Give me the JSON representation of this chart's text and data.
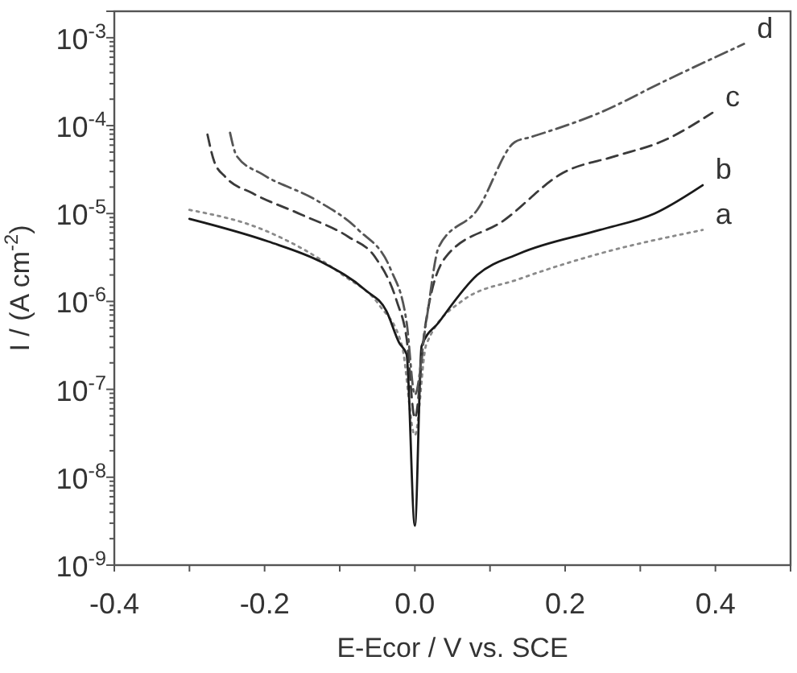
{
  "chart_data": {
    "type": "line",
    "xlabel": "E-Ecor / V vs. SCE",
    "ylabel": "I / (A cm$^{-2}$)",
    "log": "y",
    "xlim": [
      -0.4,
      0.5
    ],
    "ylim": [
      1e-09,
      0.002
    ],
    "xticks": [
      -0.4,
      {
        "value": -0.3,
        "label": null
      },
      -0.2,
      {
        "value": -0.1,
        "label": null
      },
      {
        "value": 0,
        "label": "0.0"
      },
      {
        "value": 0.1,
        "label": null
      },
      0.2,
      {
        "value": 0.3,
        "label": null
      },
      0.4
    ],
    "yticks": [
      {
        "value": 1e-09,
        "label": "10$^{-9}$"
      },
      {
        "value": 1e-08,
        "label": "10$^{-8}$"
      },
      {
        "value": 1e-07,
        "label": "10$^{-7}$"
      },
      {
        "value": 1e-06,
        "label": "10$^{-6}$"
      },
      {
        "value": 1e-05,
        "label": "10$^{-5}$"
      },
      {
        "value": 0.0001,
        "label": "10$^{-4}$"
      },
      {
        "value": 0.001,
        "label": "10$^{-3}$"
      }
    ],
    "grid": false,
    "marker": "none",
    "series": [
      {
        "name": "a",
        "color": "#8a8a8a",
        "line_style": "dotted",
        "x": [
          -0.3,
          -0.203,
          -0.096,
          -0.047,
          -0.017,
          0,
          0.015,
          0.062,
          0.139,
          0.246,
          0.383
        ],
        "values": [
          1.1e-05,
          6.6e-06,
          2e-06,
          9e-07,
          3.1e-07,
          3e-08,
          3.2e-07,
          1e-06,
          1.8e-06,
          3.5e-06,
          6.5e-06
        ]
      },
      {
        "name": "b",
        "color": "#1a1a1a",
        "line_style": "solid",
        "x": [
          -0.3,
          -0.195,
          -0.124,
          -0.066,
          -0.038,
          -0.021,
          -0.011,
          0,
          0.009,
          0.032,
          0.083,
          0.139,
          0.246,
          0.319,
          0.383
        ],
        "values": [
          8.7e-06,
          4.8e-06,
          2.8e-06,
          1.35e-06,
          7.8e-07,
          3.4e-07,
          2.5e-07,
          2.8e-09,
          3.1e-07,
          5.8e-07,
          2e-06,
          3.5e-06,
          6.5e-06,
          1e-05,
          2.1e-05
        ]
      },
      {
        "name": "c",
        "color": "#3a3a3a",
        "line_style": "dashed",
        "x": [
          -0.276,
          -0.267,
          -0.252,
          -0.216,
          -0.152,
          -0.088,
          -0.053,
          -0.024,
          -0.011,
          0,
          0.013,
          0.041,
          0.118,
          0.197,
          0.267,
          0.332,
          0.396
        ],
        "values": [
          7.9e-05,
          3.9e-05,
          2.6e-05,
          1.7e-05,
          9.8e-06,
          5.4e-06,
          3.2e-06,
          1e-06,
          3.8e-07,
          4.7e-08,
          4.7e-07,
          3.2e-06,
          8.3e-06,
          2.9e-05,
          4.5e-05,
          6.8e-05,
          0.00014
        ]
      },
      {
        "name": "d",
        "color": "#555555",
        "line_style": "dashdot",
        "x": [
          -0.246,
          -0.237,
          -0.203,
          -0.13,
          -0.075,
          -0.032,
          -0.011,
          0,
          0.015,
          0.032,
          0.083,
          0.133,
          0.154,
          0.246,
          0.332,
          0.438
        ],
        "values": [
          8.3e-05,
          4.5e-05,
          2.8e-05,
          1.4e-05,
          6.5e-06,
          2.3e-06,
          5.8e-07,
          8.7e-08,
          5.8e-07,
          4.2e-06,
          1.1e-05,
          6.5e-05,
          7.4e-05,
          0.00014,
          0.00032,
          0.00085
        ]
      }
    ]
  }
}
